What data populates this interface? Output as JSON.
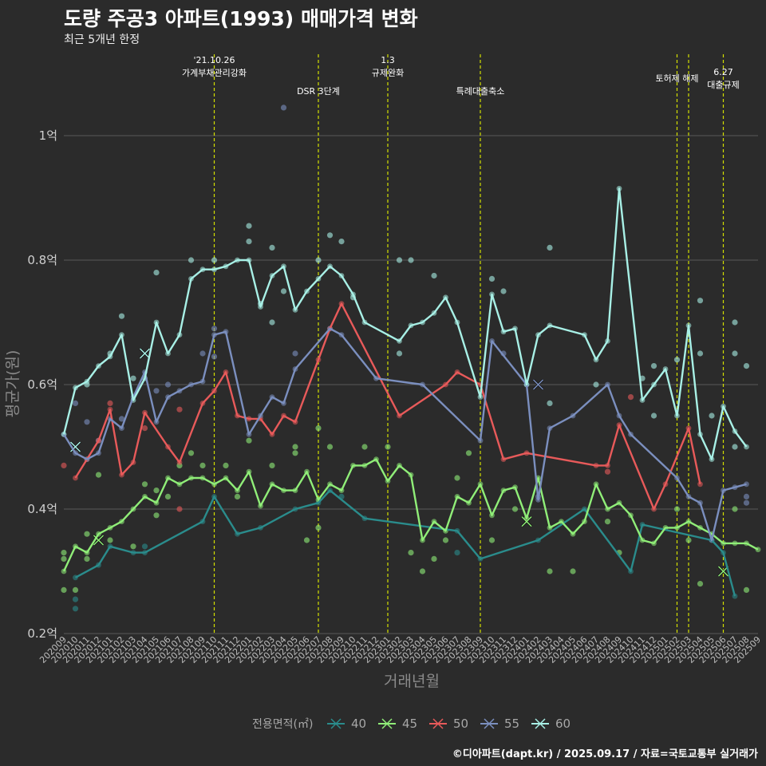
{
  "header": {
    "title": "도량 주공3 아파트(1993) 매매가격 변화",
    "subtitle": "최근 5개년 한정"
  },
  "caption": "©디아파트(dapt.kr) / 2025.09.17 / 자료=국토교통부 실거래가",
  "colors": {
    "background": "#2b2b2b",
    "grid": "#5a5a5a",
    "event_line": "#d4e000",
    "s40": "#2a8c8c",
    "s45": "#90ee78",
    "s50": "#e85a5a",
    "s55": "#7b8fbf",
    "s60": "#a8f0e6"
  },
  "chart_data": {
    "type": "line",
    "title": "도량 주공3 아파트(1993) 매매가격 변화",
    "subtitle": "최근 5개년 한정",
    "xlabel": "거래년월",
    "ylabel": "평균가(원)",
    "ylim": [
      0.2,
      1.0
    ],
    "yticks": [
      0.2,
      0.4,
      0.6,
      0.8,
      1.0
    ],
    "ytick_labels": [
      "0.2억",
      "0.4억",
      "0.6억",
      "0.8억",
      "1억"
    ],
    "grid": true,
    "legend_title": "전용면적(㎡)",
    "legend_position": "bottom",
    "x": [
      "202009",
      "202010",
      "202011",
      "202012",
      "202101",
      "202102",
      "202103",
      "202104",
      "202105",
      "202106",
      "202107",
      "202108",
      "202109",
      "202110",
      "202111",
      "202112",
      "202201",
      "202202",
      "202203",
      "202204",
      "202205",
      "202206",
      "202207",
      "202208",
      "202209",
      "202210",
      "202211",
      "202212",
      "202301",
      "202302",
      "202303",
      "202304",
      "202305",
      "202306",
      "202307",
      "202308",
      "202309",
      "202310",
      "202311",
      "202312",
      "202401",
      "202402",
      "202403",
      "202404",
      "202405",
      "202406",
      "202407",
      "202408",
      "202409",
      "202410",
      "202411",
      "202412",
      "202501",
      "202502",
      "202503",
      "202504",
      "202505",
      "202506",
      "202507",
      "202508",
      "202509"
    ],
    "events": [
      {
        "x": "202110",
        "label": "'21.10.26\n가계부채관리강화"
      },
      {
        "x": "202207",
        "label": "DSR 3단계"
      },
      {
        "x": "202301",
        "label": "1.3\n규제완화"
      },
      {
        "x": "202309",
        "label": "특례대출축소"
      },
      {
        "x": "202502",
        "label": "토허제 해제"
      },
      {
        "x": "202503",
        "label": ""
      },
      {
        "x": "202506",
        "label": "6.27\n대출규제"
      }
    ],
    "series": [
      {
        "name": "40",
        "color": "#2a8c8c",
        "values": [
          null,
          0.29,
          null,
          0.31,
          0.34,
          null,
          0.33,
          0.33,
          null,
          null,
          null,
          null,
          0.38,
          0.42,
          null,
          0.36,
          null,
          0.37,
          null,
          null,
          0.4,
          null,
          0.41,
          0.43,
          null,
          null,
          0.385,
          null,
          null,
          null,
          null,
          null,
          null,
          null,
          0.365,
          null,
          0.32,
          null,
          null,
          null,
          null,
          0.35,
          null,
          null,
          null,
          0.4,
          null,
          null,
          null,
          0.3,
          0.375,
          null,
          null,
          null,
          null,
          null,
          0.35,
          0.33,
          0.26,
          null,
          null
        ]
      },
      {
        "name": "45",
        "color": "#90ee78",
        "values": [
          0.3,
          0.34,
          0.33,
          0.36,
          0.37,
          0.38,
          0.4,
          0.42,
          0.41,
          0.45,
          0.44,
          0.45,
          0.45,
          0.44,
          0.45,
          0.43,
          0.46,
          0.405,
          0.44,
          0.43,
          0.43,
          0.46,
          0.415,
          0.44,
          0.43,
          0.47,
          0.47,
          0.48,
          0.445,
          0.47,
          0.455,
          0.35,
          0.38,
          0.365,
          0.42,
          0.41,
          0.44,
          0.39,
          0.43,
          0.435,
          0.385,
          0.45,
          0.37,
          0.38,
          0.36,
          0.38,
          0.44,
          0.4,
          0.41,
          0.39,
          0.35,
          0.345,
          0.37,
          0.37,
          0.38,
          0.37,
          0.36,
          0.345,
          0.345,
          0.345,
          0.335
        ]
      },
      {
        "name": "50",
        "color": "#e85a5a",
        "values": [
          null,
          0.45,
          0.48,
          0.51,
          0.56,
          0.455,
          0.475,
          0.555,
          null,
          0.5,
          0.475,
          null,
          0.57,
          0.59,
          0.62,
          0.55,
          0.545,
          0.545,
          0.52,
          0.55,
          0.54,
          null,
          0.64,
          0.69,
          0.73,
          null,
          null,
          null,
          null,
          0.55,
          null,
          null,
          null,
          0.6,
          0.62,
          null,
          0.6,
          null,
          0.48,
          null,
          0.49,
          null,
          null,
          null,
          null,
          null,
          0.47,
          0.47,
          0.535,
          null,
          null,
          0.4,
          0.44,
          null,
          0.53,
          0.44,
          null,
          null,
          null,
          null,
          null
        ]
      },
      {
        "name": "55",
        "color": "#7b8fbf",
        "values": [
          0.52,
          0.49,
          0.48,
          0.49,
          0.545,
          0.53,
          0.58,
          0.62,
          0.54,
          0.58,
          0.59,
          0.6,
          0.605,
          0.68,
          0.685,
          null,
          0.52,
          0.55,
          0.58,
          0.57,
          0.625,
          null,
          null,
          0.69,
          0.68,
          null,
          null,
          0.61,
          null,
          null,
          null,
          0.6,
          null,
          null,
          null,
          null,
          0.51,
          0.67,
          null,
          null,
          0.6,
          0.415,
          0.53,
          null,
          0.55,
          null,
          null,
          0.6,
          0.55,
          0.52,
          null,
          null,
          null,
          0.45,
          0.42,
          0.41,
          0.35,
          0.43,
          0.435,
          0.44,
          null
        ]
      },
      {
        "name": "60",
        "color": "#a8f0e6",
        "values": [
          0.52,
          0.595,
          0.605,
          0.63,
          0.645,
          0.68,
          0.575,
          0.61,
          0.7,
          0.65,
          0.68,
          0.77,
          0.785,
          0.785,
          0.79,
          0.8,
          0.8,
          0.725,
          0.775,
          0.79,
          0.72,
          0.75,
          0.77,
          0.79,
          0.775,
          0.745,
          0.7,
          null,
          null,
          0.67,
          0.695,
          0.7,
          0.715,
          0.74,
          0.7,
          null,
          0.58,
          0.745,
          0.685,
          0.69,
          0.6,
          0.68,
          0.695,
          null,
          null,
          0.68,
          0.64,
          0.67,
          0.915,
          null,
          0.575,
          0.6,
          0.625,
          0.55,
          0.695,
          0.52,
          0.48,
          0.565,
          0.525,
          0.5,
          null
        ]
      }
    ],
    "points": [
      {
        "x": "202009",
        "y": 0.47,
        "series": "50"
      },
      {
        "x": "202009",
        "y": 0.33,
        "series": "45"
      },
      {
        "x": "202009",
        "y": 0.32,
        "series": "45"
      },
      {
        "x": "202009",
        "y": 0.27,
        "series": "45"
      },
      {
        "x": "202010",
        "y": 0.57,
        "series": "55"
      },
      {
        "x": "202010",
        "y": 0.5,
        "series": "60",
        "marker": "x"
      },
      {
        "x": "202010",
        "y": 0.255,
        "series": "40"
      },
      {
        "x": "202010",
        "y": 0.24,
        "series": "40"
      },
      {
        "x": "202010",
        "y": 0.27,
        "series": "45"
      },
      {
        "x": "202011",
        "y": 0.6,
        "series": "60"
      },
      {
        "x": "202011",
        "y": 0.54,
        "series": "55"
      },
      {
        "x": "202011",
        "y": 0.36,
        "series": "45"
      },
      {
        "x": "202011",
        "y": 0.32,
        "series": "45"
      },
      {
        "x": "202012",
        "y": 0.51,
        "series": "55"
      },
      {
        "x": "202012",
        "y": 0.455,
        "series": "45"
      },
      {
        "x": "202012",
        "y": 0.35,
        "series": "45",
        "marker": "x"
      },
      {
        "x": "202101",
        "y": 0.65,
        "series": "60"
      },
      {
        "x": "202101",
        "y": 0.57,
        "series": "50"
      },
      {
        "x": "202101",
        "y": 0.35,
        "series": "45"
      },
      {
        "x": "202102",
        "y": 0.71,
        "series": "60"
      },
      {
        "x": "202102",
        "y": 0.545,
        "series": "55"
      },
      {
        "x": "202103",
        "y": 0.61,
        "series": "60"
      },
      {
        "x": "202103",
        "y": 0.34,
        "series": "45"
      },
      {
        "x": "202104",
        "y": 0.65,
        "series": "60",
        "marker": "x"
      },
      {
        "x": "202104",
        "y": 0.53,
        "series": "50"
      },
      {
        "x": "202104",
        "y": 0.44,
        "series": "45"
      },
      {
        "x": "202104",
        "y": 0.34,
        "series": "40"
      },
      {
        "x": "202105",
        "y": 0.78,
        "series": "60"
      },
      {
        "x": "202105",
        "y": 0.59,
        "series": "55"
      },
      {
        "x": "202105",
        "y": 0.43,
        "series": "45"
      },
      {
        "x": "202105",
        "y": 0.39,
        "series": "45"
      },
      {
        "x": "202106",
        "y": 0.6,
        "series": "55"
      },
      {
        "x": "202106",
        "y": 0.42,
        "series": "45"
      },
      {
        "x": "202107",
        "y": 0.4,
        "series": "50"
      },
      {
        "x": "202107",
        "y": 0.47,
        "series": "45"
      },
      {
        "x": "202107",
        "y": 0.56,
        "series": "50"
      },
      {
        "x": "202108",
        "y": 0.8,
        "series": "60"
      },
      {
        "x": "202108",
        "y": 0.49,
        "series": "45"
      },
      {
        "x": "202109",
        "y": 0.65,
        "series": "55"
      },
      {
        "x": "202109",
        "y": 0.47,
        "series": "45"
      },
      {
        "x": "202110",
        "y": 0.8,
        "series": "60"
      },
      {
        "x": "202110",
        "y": 0.69,
        "series": "55"
      },
      {
        "x": "202110",
        "y": 0.645,
        "series": "55"
      },
      {
        "x": "202111",
        "y": 0.47,
        "series": "45"
      },
      {
        "x": "202112",
        "y": 0.42,
        "series": "45"
      },
      {
        "x": "202201",
        "y": 0.855,
        "series": "60"
      },
      {
        "x": "202201",
        "y": 0.83,
        "series": "60"
      },
      {
        "x": "202201",
        "y": 0.51,
        "series": "45"
      },
      {
        "x": "202202",
        "y": 0.73,
        "series": "60"
      },
      {
        "x": "202203",
        "y": 0.82,
        "series": "60"
      },
      {
        "x": "202203",
        "y": 0.7,
        "series": "60"
      },
      {
        "x": "202203",
        "y": 0.47,
        "series": "45"
      },
      {
        "x": "202204",
        "y": 1.045,
        "series": "55"
      },
      {
        "x": "202204",
        "y": 0.75,
        "series": "60"
      },
      {
        "x": "202205",
        "y": 0.65,
        "series": "55"
      },
      {
        "x": "202205",
        "y": 0.49,
        "series": "45"
      },
      {
        "x": "202205",
        "y": 0.5,
        "series": "45"
      },
      {
        "x": "202206",
        "y": 0.35,
        "series": "45"
      },
      {
        "x": "202207",
        "y": 0.8,
        "series": "60"
      },
      {
        "x": "202207",
        "y": 0.53,
        "series": "45"
      },
      {
        "x": "202207",
        "y": 0.37,
        "series": "45"
      },
      {
        "x": "202208",
        "y": 0.84,
        "series": "60"
      },
      {
        "x": "202208",
        "y": 0.5,
        "series": "45"
      },
      {
        "x": "202209",
        "y": 0.83,
        "series": "60"
      },
      {
        "x": "202209",
        "y": 0.42,
        "series": "40"
      },
      {
        "x": "202210",
        "y": 0.74,
        "series": "60"
      },
      {
        "x": "202211",
        "y": 0.5,
        "series": "45"
      },
      {
        "x": "202301",
        "y": 0.5,
        "series": "45"
      },
      {
        "x": "202302",
        "y": 0.8,
        "series": "60"
      },
      {
        "x": "202302",
        "y": 0.65,
        "series": "60"
      },
      {
        "x": "202303",
        "y": 0.8,
        "series": "60"
      },
      {
        "x": "202303",
        "y": 0.33,
        "series": "45"
      },
      {
        "x": "202304",
        "y": 0.3,
        "series": "45"
      },
      {
        "x": "202305",
        "y": 0.775,
        "series": "60"
      },
      {
        "x": "202305",
        "y": 0.32,
        "series": "45"
      },
      {
        "x": "202306",
        "y": 0.35,
        "series": "45"
      },
      {
        "x": "202307",
        "y": 0.33,
        "series": "40"
      },
      {
        "x": "202307",
        "y": 0.45,
        "series": "45"
      },
      {
        "x": "202308",
        "y": 0.49,
        "series": "45"
      },
      {
        "x": "202310",
        "y": 0.77,
        "series": "60"
      },
      {
        "x": "202310",
        "y": 0.35,
        "series": "45"
      },
      {
        "x": "202311",
        "y": 0.75,
        "series": "60"
      },
      {
        "x": "202311",
        "y": 0.65,
        "series": "55"
      },
      {
        "x": "202312",
        "y": 0.4,
        "series": "45"
      },
      {
        "x": "202401",
        "y": 0.38,
        "series": "45",
        "marker": "x"
      },
      {
        "x": "202402",
        "y": 0.6,
        "series": "55",
        "marker": "x"
      },
      {
        "x": "202402",
        "y": 0.42,
        "series": "55"
      },
      {
        "x": "202403",
        "y": 0.82,
        "series": "60"
      },
      {
        "x": "202403",
        "y": 0.57,
        "series": "60"
      },
      {
        "x": "202403",
        "y": 0.3,
        "series": "45"
      },
      {
        "x": "202405",
        "y": 0.3,
        "series": "45"
      },
      {
        "x": "202407",
        "y": 0.6,
        "series": "60"
      },
      {
        "x": "202408",
        "y": 0.46,
        "series": "50"
      },
      {
        "x": "202408",
        "y": 0.38,
        "series": "45"
      },
      {
        "x": "202409",
        "y": 0.33,
        "series": "45"
      },
      {
        "x": "202410",
        "y": 0.58,
        "series": "50"
      },
      {
        "x": "202411",
        "y": 0.61,
        "series": "60"
      },
      {
        "x": "202412",
        "y": 0.63,
        "series": "60"
      },
      {
        "x": "202412",
        "y": 0.55,
        "series": "60"
      },
      {
        "x": "202502",
        "y": 0.64,
        "series": "60"
      },
      {
        "x": "202502",
        "y": 0.4,
        "series": "45"
      },
      {
        "x": "202503",
        "y": 0.35,
        "series": "45"
      },
      {
        "x": "202504",
        "y": 0.735,
        "series": "60"
      },
      {
        "x": "202504",
        "y": 0.65,
        "series": "60"
      },
      {
        "x": "202504",
        "y": 0.28,
        "series": "45"
      },
      {
        "x": "202505",
        "y": 0.55,
        "series": "60"
      },
      {
        "x": "202506",
        "y": 0.3,
        "series": "45",
        "marker": "x"
      },
      {
        "x": "202507",
        "y": 0.7,
        "series": "60"
      },
      {
        "x": "202507",
        "y": 0.65,
        "series": "60"
      },
      {
        "x": "202507",
        "y": 0.5,
        "series": "60"
      },
      {
        "x": "202507",
        "y": 0.4,
        "series": "45"
      },
      {
        "x": "202508",
        "y": 0.63,
        "series": "60"
      },
      {
        "x": "202508",
        "y": 0.42,
        "series": "55"
      },
      {
        "x": "202508",
        "y": 0.41,
        "series": "55"
      },
      {
        "x": "202508",
        "y": 0.27,
        "series": "45"
      }
    ]
  }
}
